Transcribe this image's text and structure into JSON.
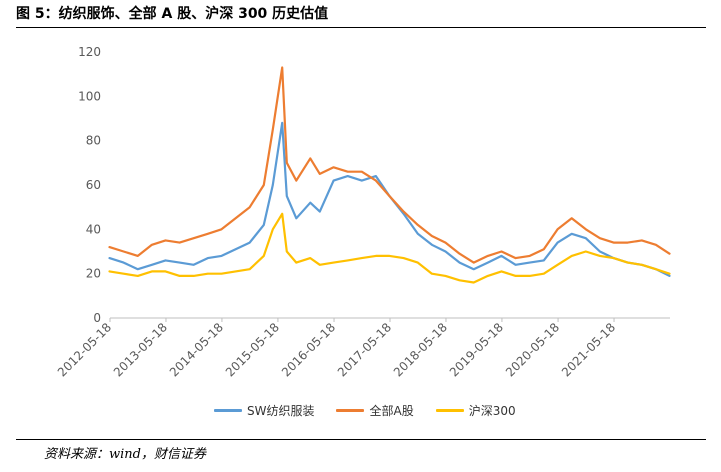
{
  "figure": {
    "title": "图 5：纺织服饰、全部 A 股、沪深 300 历史估值",
    "source": "资料来源：wind，财信证券"
  },
  "colors": {
    "sw_textile": "#5B9BD5",
    "all_a": "#ED7D31",
    "hs300": "#FFC000",
    "axis": "#BFBFBF",
    "tick_text": "#595959"
  },
  "chart_data": {
    "type": "line",
    "ylim": [
      0,
      120
    ],
    "yticks": [
      0,
      20,
      40,
      60,
      80,
      100,
      120
    ],
    "xticks": [
      "2012-05-18",
      "2013-05-18",
      "2014-05-18",
      "2015-05-18",
      "2016-05-18",
      "2017-05-18",
      "2018-05-18",
      "2019-05-18",
      "2020-05-18",
      "2021-05-18"
    ],
    "xlim": [
      "2012-05-18",
      "2022-05-18"
    ],
    "grid": false,
    "legend_position": "bottom",
    "x": [
      "2012-05",
      "2012-08",
      "2012-11",
      "2013-02",
      "2013-05",
      "2013-08",
      "2013-11",
      "2014-02",
      "2014-05",
      "2014-08",
      "2014-11",
      "2015-02",
      "2015-04",
      "2015-06",
      "2015-07",
      "2015-09",
      "2015-12",
      "2016-02",
      "2016-05",
      "2016-08",
      "2016-11",
      "2017-02",
      "2017-05",
      "2017-08",
      "2017-11",
      "2018-02",
      "2018-05",
      "2018-08",
      "2018-11",
      "2019-02",
      "2019-05",
      "2019-08",
      "2019-11",
      "2020-02",
      "2020-05",
      "2020-08",
      "2020-11",
      "2021-02",
      "2021-05",
      "2021-08",
      "2021-11",
      "2022-02",
      "2022-05"
    ],
    "series": [
      {
        "name": "SW纺织服装",
        "color_key": "sw_textile",
        "values": [
          27,
          25,
          22,
          24,
          26,
          25,
          24,
          27,
          28,
          31,
          34,
          42,
          60,
          88,
          55,
          45,
          52,
          48,
          62,
          64,
          62,
          64,
          55,
          47,
          38,
          33,
          30,
          25,
          22,
          25,
          28,
          24,
          25,
          26,
          34,
          38,
          36,
          30,
          27,
          25,
          24,
          22,
          19
        ]
      },
      {
        "name": "全部A股",
        "color_key": "all_a",
        "values": [
          32,
          30,
          28,
          33,
          35,
          34,
          36,
          38,
          40,
          45,
          50,
          60,
          85,
          113,
          70,
          62,
          72,
          65,
          68,
          66,
          66,
          62,
          55,
          48,
          42,
          37,
          34,
          29,
          25,
          28,
          30,
          27,
          28,
          31,
          40,
          45,
          40,
          36,
          34,
          34,
          35,
          33,
          29
        ]
      },
      {
        "name": "沪深300",
        "color_key": "hs300",
        "values": [
          21,
          20,
          19,
          21,
          21,
          19,
          19,
          20,
          20,
          21,
          22,
          28,
          40,
          47,
          30,
          25,
          27,
          24,
          25,
          26,
          27,
          28,
          28,
          27,
          25,
          20,
          19,
          17,
          16,
          19,
          21,
          19,
          19,
          20,
          24,
          28,
          30,
          28,
          27,
          25,
          24,
          22,
          20
        ]
      }
    ]
  }
}
